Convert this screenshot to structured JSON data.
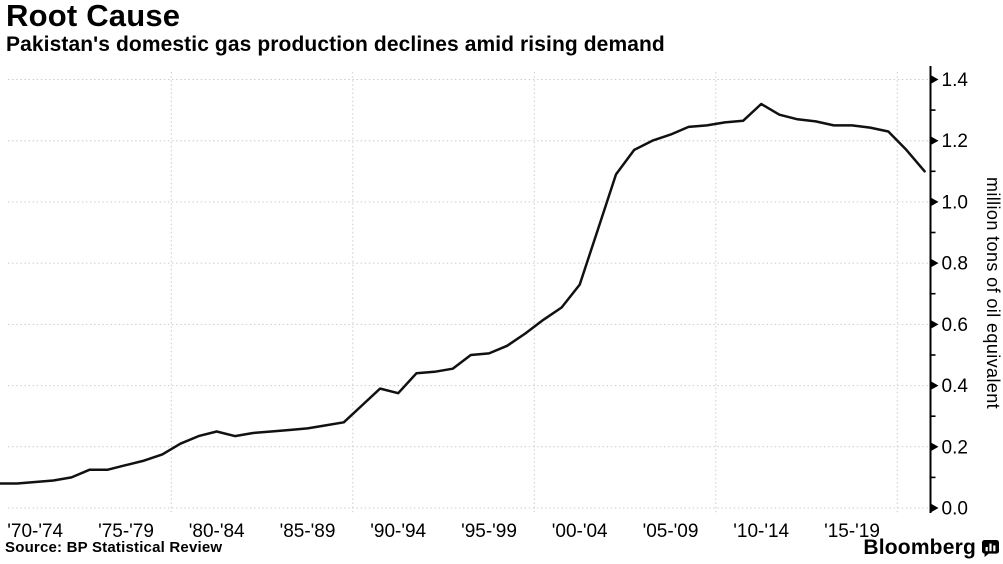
{
  "header": {
    "title": "Root Cause",
    "subtitle": "Pakistan's domestic gas production declines amid rising demand"
  },
  "footer": {
    "source": "Source: BP Statistical Review",
    "brand": "Bloomberg"
  },
  "chart_data": {
    "type": "line",
    "title": "Root Cause",
    "subtitle": "Pakistan's domestic gas production declines amid rising demand",
    "source": "Source: BP Statistical Review",
    "xlabel": "",
    "ylabel": "million tons of oil equivalent",
    "ylim": [
      0.0,
      1.4
    ],
    "y_major_ticks": [
      0.0,
      0.2,
      0.4,
      0.6,
      0.8,
      1.0,
      1.2,
      1.4
    ],
    "y_minor_tick_step": 0.1,
    "x_tick_labels": [
      "'70-'74",
      "'75-'79",
      "'80-'84",
      "'85-'89",
      "'90-'94",
      "'95-'99",
      "'00-'04",
      "'05-'09",
      "'10-'14",
      "'15-'19"
    ],
    "x_tick_label_center_years": [
      1972,
      1977,
      1982,
      1987,
      1992,
      1997,
      2002,
      2007,
      2012,
      2017
    ],
    "x_gridline_years": [
      1979.5,
      1989.5,
      1999.5,
      2009.5,
      2019.5
    ],
    "x_domain": [
      1970.5,
      2021.3
    ],
    "grid": "dotted",
    "legend_position": "none",
    "line_color": "#111111",
    "grid_color": "#cccccc",
    "x": [
      1970,
      1971,
      1972,
      1973,
      1974,
      1975,
      1976,
      1977,
      1978,
      1979,
      1980,
      1981,
      1982,
      1983,
      1984,
      1985,
      1986,
      1987,
      1988,
      1989,
      1990,
      1991,
      1992,
      1993,
      1994,
      1995,
      1996,
      1997,
      1998,
      1999,
      2000,
      2001,
      2002,
      2003,
      2004,
      2005,
      2006,
      2007,
      2008,
      2009,
      2010,
      2011,
      2012,
      2013,
      2014,
      2015,
      2016,
      2017,
      2018,
      2019,
      2020,
      2021
    ],
    "values": [
      0.08,
      0.08,
      0.085,
      0.09,
      0.1,
      0.125,
      0.125,
      0.14,
      0.155,
      0.175,
      0.21,
      0.235,
      0.25,
      0.235,
      0.245,
      0.25,
      0.255,
      0.26,
      0.27,
      0.28,
      0.335,
      0.39,
      0.375,
      0.44,
      0.445,
      0.455,
      0.5,
      0.505,
      0.53,
      0.57,
      0.615,
      0.655,
      0.73,
      0.91,
      1.09,
      1.17,
      1.2,
      1.22,
      1.245,
      1.25,
      1.26,
      1.265,
      1.32,
      1.285,
      1.27,
      1.263,
      1.25,
      1.25,
      1.243,
      1.23,
      1.17,
      1.1
    ]
  }
}
